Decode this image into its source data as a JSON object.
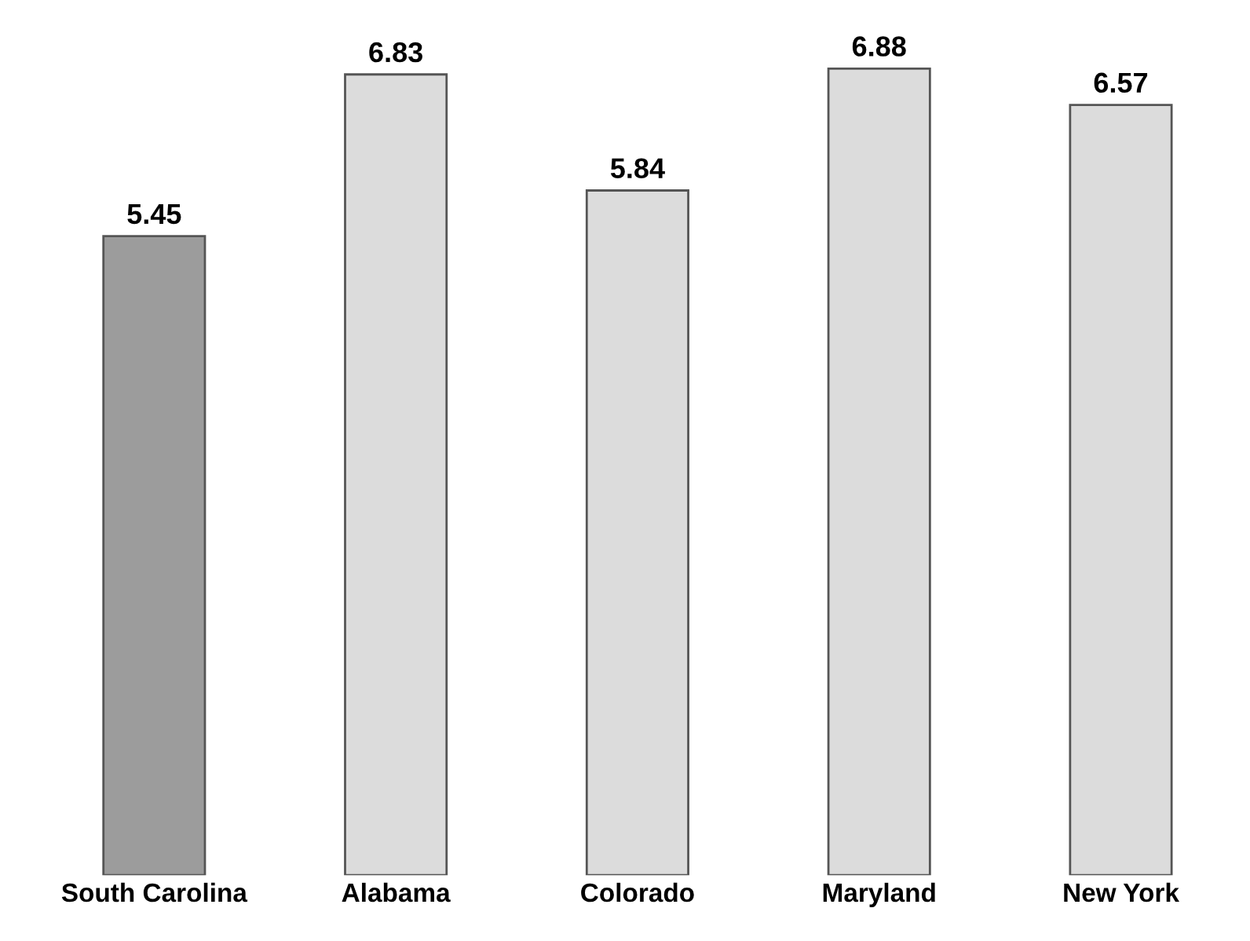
{
  "chart_data": {
    "type": "bar",
    "categories": [
      "South Carolina",
      "Alabama",
      "Colorado",
      "Maryland",
      "New York"
    ],
    "values": [
      5.45,
      6.83,
      5.84,
      6.88,
      6.57
    ],
    "colors": [
      "#9c9c9c",
      "#dcdcdc",
      "#dcdcdc",
      "#dcdcdc",
      "#dcdcdc"
    ],
    "data_labels": true,
    "tick_labels": "x",
    "grid": false,
    "legend": false
  }
}
